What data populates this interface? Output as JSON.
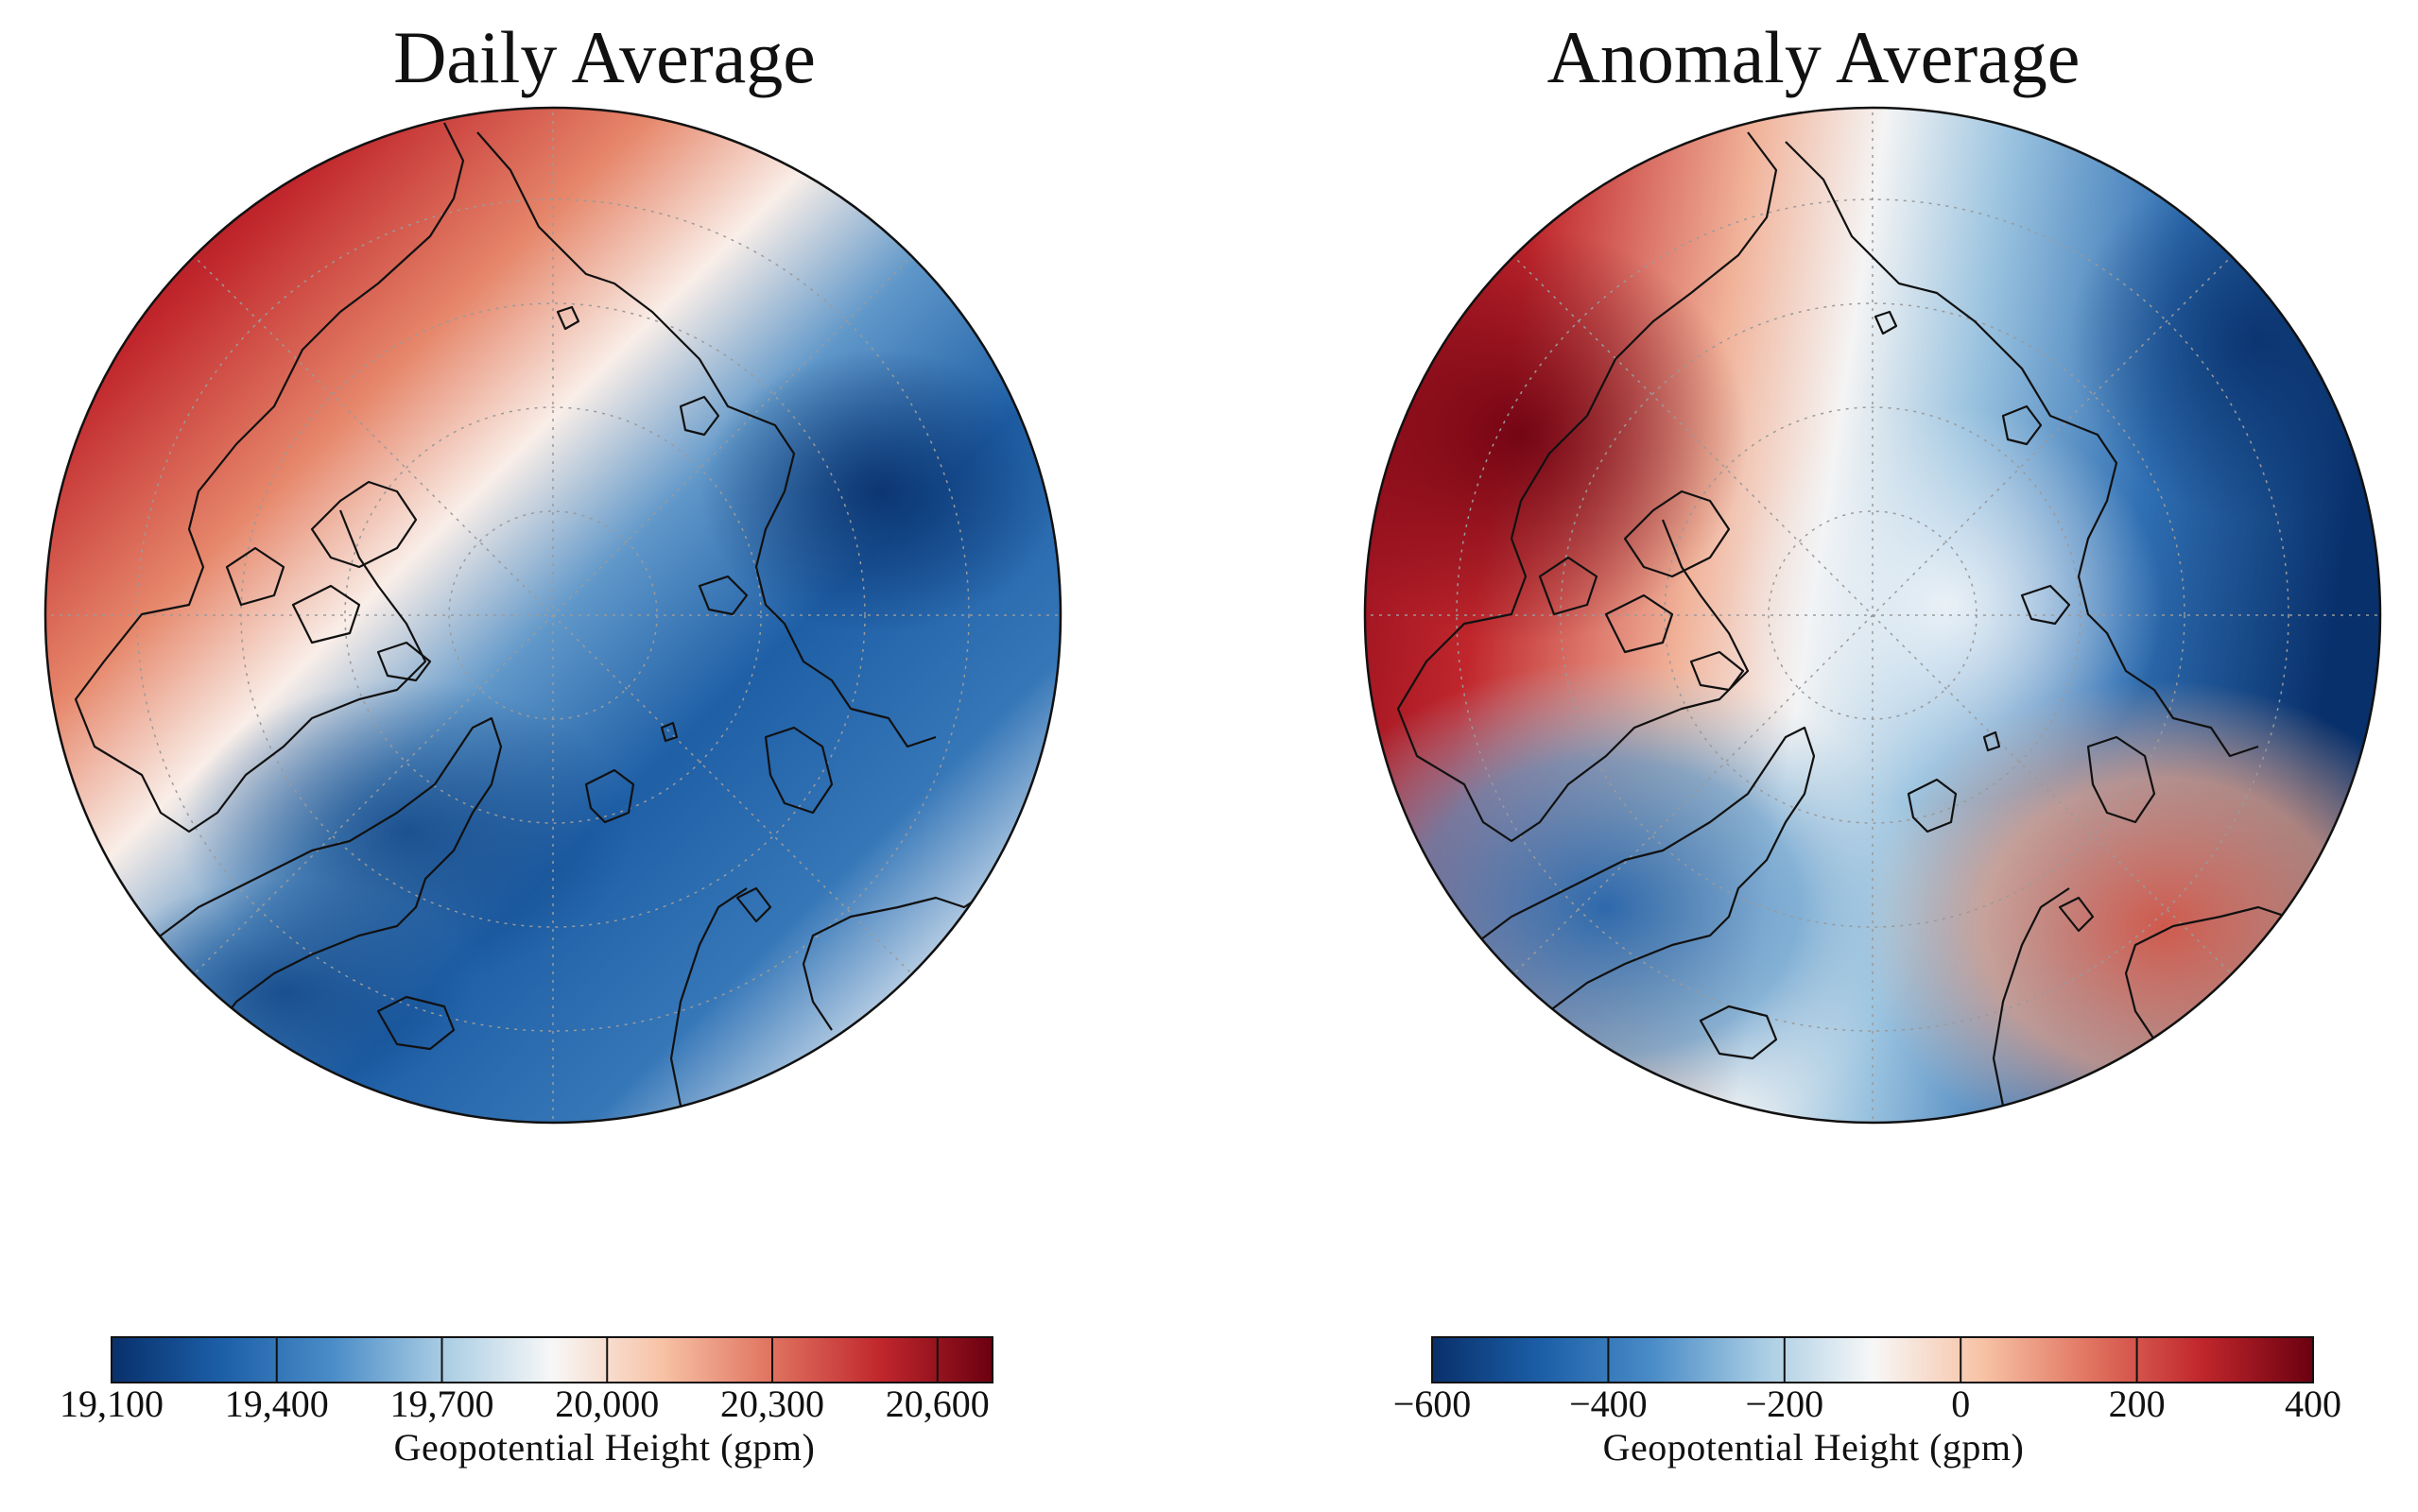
{
  "panels": [
    {
      "title": "Daily Average",
      "colorbar": {
        "label": "Geopotential Height (gpm)",
        "range": [
          19100,
          20700
        ],
        "ticks": [
          "19,100",
          "19,400",
          "19,700",
          "20,000",
          "20,300",
          "20,600"
        ],
        "tick_values": [
          19100,
          19400,
          19700,
          20000,
          20300,
          20600
        ]
      }
    },
    {
      "title": "Anomaly Average",
      "colorbar": {
        "label": "Geopotential Height (gpm)",
        "range": [
          -600,
          400
        ],
        "ticks": [
          "−600",
          "−400",
          "−200",
          "0",
          "200",
          "400"
        ],
        "tick_values": [
          -600,
          -400,
          -200,
          0,
          200,
          400
        ]
      }
    }
  ],
  "colormap": {
    "name": "RdBu_r",
    "stops": [
      "#08306b",
      "#1c5fa8",
      "#4a8cc7",
      "#a8cce3",
      "#f7f7f7",
      "#f7c2a5",
      "#e0725f",
      "#c0262c",
      "#6b0010"
    ]
  }
}
